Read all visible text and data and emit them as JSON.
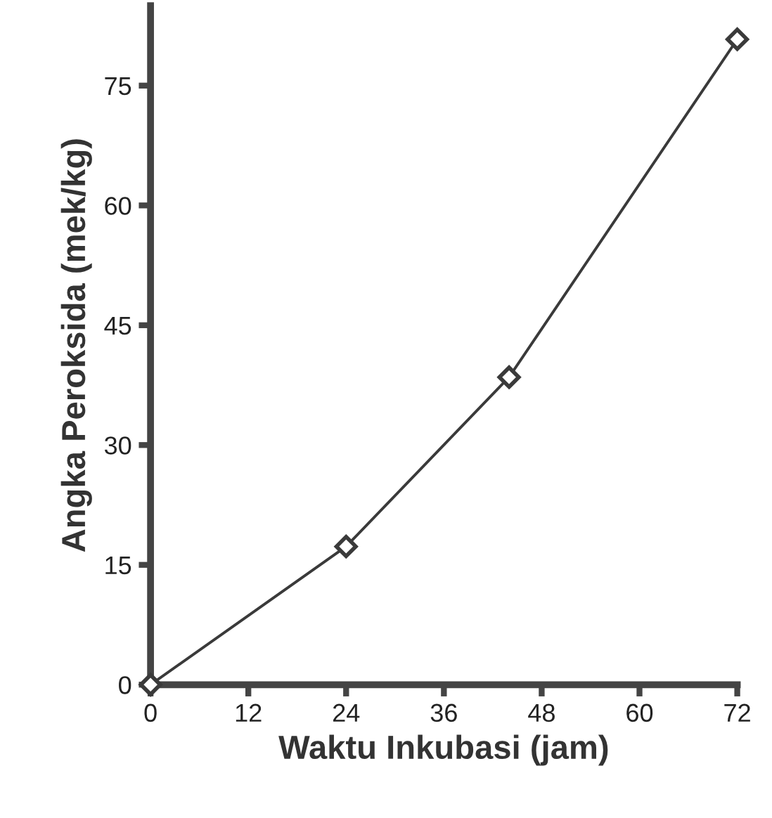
{
  "chart_data": {
    "type": "line",
    "xlabel": "Waktu Inkubasi (jam)",
    "ylabel": "Angka Peroksida (mek/kg)",
    "x": [
      0,
      24,
      44,
      72
    ],
    "series": [
      {
        "color": "#3a3a3a",
        "values": [
          0,
          17.3,
          38.5,
          80.8
        ]
      }
    ],
    "xlim": [
      0,
      72
    ],
    "xticks": [
      0,
      12,
      24,
      36,
      48,
      60,
      72
    ],
    "ylim": [
      0,
      85
    ],
    "yticks": [
      0,
      15,
      30,
      45,
      60,
      75
    ],
    "marker": "diamond",
    "line_style": "solid",
    "grid": false
  }
}
